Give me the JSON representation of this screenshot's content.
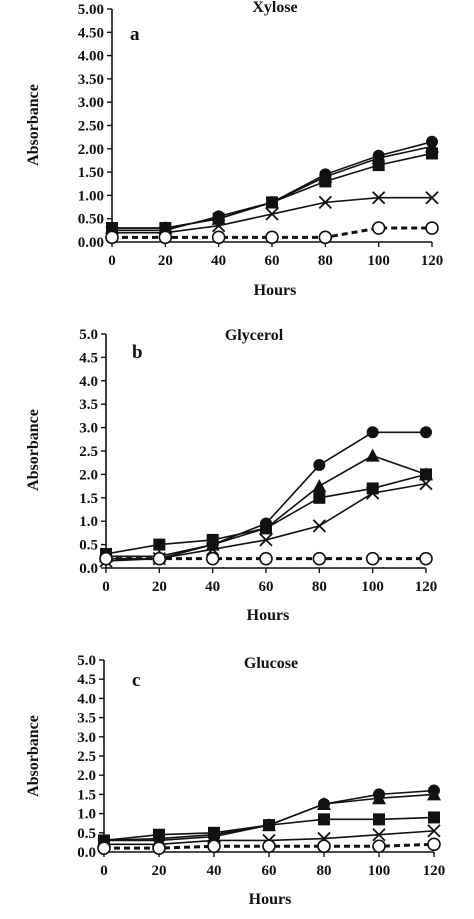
{
  "chart_data": [
    {
      "type": "line",
      "title": "Xylose",
      "panel_label": "a",
      "xlabel": "Hours",
      "ylabel": "Absorbance",
      "x": [
        0,
        20,
        40,
        60,
        80,
        100,
        120
      ],
      "xticks": [
        "0",
        "20",
        "40",
        "60",
        "80",
        "100",
        "120"
      ],
      "xlim": [
        0,
        120
      ],
      "ylim": [
        0,
        5
      ],
      "yticks": [
        "0.00",
        "0.50",
        "1.00",
        "1.50",
        "2.00",
        "2.50",
        "3.00",
        "3.50",
        "4.00",
        "4.50",
        "5.00"
      ],
      "grid": false,
      "series": [
        {
          "marker": "circle",
          "values": [
            0.25,
            0.25,
            0.55,
            0.85,
            1.45,
            1.85,
            2.15
          ]
        },
        {
          "marker": "triangle",
          "values": [
            0.3,
            0.3,
            0.5,
            0.85,
            1.4,
            1.8,
            2.05
          ]
        },
        {
          "marker": "square",
          "values": [
            0.3,
            0.3,
            0.5,
            0.85,
            1.3,
            1.65,
            1.9
          ]
        },
        {
          "marker": "x",
          "values": [
            0.2,
            0.2,
            0.35,
            0.6,
            0.85,
            0.95,
            0.95
          ]
        },
        {
          "marker": "open-circle",
          "dashed": true,
          "values": [
            0.1,
            0.1,
            0.1,
            0.1,
            0.1,
            0.3,
            0.3
          ]
        }
      ]
    },
    {
      "type": "line",
      "title": "Glycerol",
      "panel_label": "b",
      "xlabel": "Hours",
      "ylabel": "Absorbance",
      "x": [
        0,
        20,
        40,
        60,
        80,
        100,
        120
      ],
      "xticks": [
        "0",
        "20",
        "40",
        "60",
        "80",
        "100",
        "120"
      ],
      "xlim": [
        0,
        120
      ],
      "ylim": [
        0,
        5
      ],
      "yticks": [
        "0.0",
        "0.5",
        "1.0",
        "1.5",
        "2.0",
        "2.5",
        "3.0",
        "3.5",
        "4.0",
        "4.5",
        "5.0"
      ],
      "grid": false,
      "series": [
        {
          "marker": "circle",
          "values": [
            0.2,
            0.2,
            0.5,
            0.95,
            2.2,
            2.9,
            2.9
          ]
        },
        {
          "marker": "triangle",
          "values": [
            0.25,
            0.25,
            0.5,
            0.85,
            1.75,
            2.4,
            2.0
          ]
        },
        {
          "marker": "square",
          "values": [
            0.3,
            0.5,
            0.6,
            0.85,
            1.5,
            1.7,
            2.0
          ]
        },
        {
          "marker": "x",
          "values": [
            0.15,
            0.2,
            0.4,
            0.6,
            0.9,
            1.6,
            1.8
          ]
        },
        {
          "marker": "open-circle",
          "dashed": true,
          "values": [
            0.2,
            0.2,
            0.2,
            0.2,
            0.2,
            0.2,
            0.2
          ]
        }
      ]
    },
    {
      "type": "line",
      "title": "Glucose",
      "panel_label": "c",
      "xlabel": "Hours",
      "ylabel": "Absorbance",
      "x": [
        0,
        20,
        40,
        60,
        80,
        100,
        120
      ],
      "xticks": [
        "0",
        "20",
        "40",
        "60",
        "80",
        "100",
        "120"
      ],
      "xlim": [
        0,
        120
      ],
      "ylim": [
        0,
        5
      ],
      "yticks": [
        "0.0",
        "0.5",
        "1.0",
        "1.5",
        "2.0",
        "2.5",
        "3.0",
        "3.5",
        "4.0",
        "4.5",
        "5.0"
      ],
      "grid": false,
      "series": [
        {
          "marker": "circle",
          "values": [
            0.3,
            0.35,
            0.45,
            0.7,
            1.25,
            1.5,
            1.6
          ]
        },
        {
          "marker": "triangle",
          "values": [
            0.3,
            0.3,
            0.4,
            0.7,
            1.25,
            1.4,
            1.5
          ]
        },
        {
          "marker": "square",
          "values": [
            0.3,
            0.45,
            0.5,
            0.7,
            0.85,
            0.85,
            0.9
          ]
        },
        {
          "marker": "x",
          "values": [
            0.2,
            0.2,
            0.3,
            0.3,
            0.35,
            0.45,
            0.55
          ]
        },
        {
          "marker": "open-circle",
          "dashed": true,
          "values": [
            0.1,
            0.1,
            0.15,
            0.15,
            0.15,
            0.15,
            0.2
          ]
        }
      ]
    }
  ]
}
